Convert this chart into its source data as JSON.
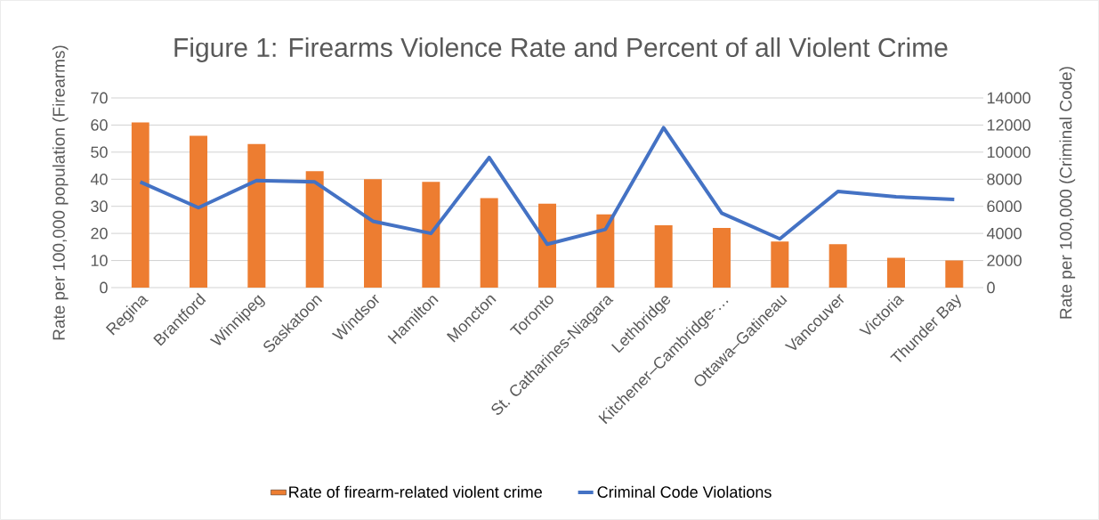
{
  "chart_data": {
    "type": "bar",
    "title": "Figure 1: Firearms Violence Rate and Percent of all Violent Crime",
    "ylabel": "Rate per 100,000 population (Firearms)",
    "y2label": "Rate per 100,000 (Criminal Code)",
    "categories": [
      "Regina",
      "Brantford",
      "Winnipeg",
      "Saskatoon",
      "Windsor",
      "Hamilton",
      "Moncton",
      "Toronto",
      "St. Catharines-Niagara",
      "Lethbridge",
      "Kitchener–Cambridge-…",
      "Ottawa–Gatineau",
      "Vancouver",
      "Victoria",
      "Thunder Bay"
    ],
    "series": [
      {
        "name": "Rate of firearm-related violent crime",
        "color": "#ed7d31",
        "values": [
          61,
          56,
          53,
          43,
          40,
          39,
          33,
          31,
          27,
          23,
          22,
          17,
          16,
          11,
          10
        ]
      },
      {
        "name": "Criminal Code Violations",
        "type": "line",
        "axis": "y2",
        "color": "#4472c4",
        "values": [
          7800,
          5900,
          7900,
          7800,
          4900,
          4000,
          9600,
          3200,
          4300,
          11800,
          5500,
          3600,
          7100,
          6700,
          6500
        ]
      }
    ],
    "ylim": [
      0,
      70
    ],
    "yticks": [
      0,
      10,
      20,
      30,
      40,
      50,
      60,
      70
    ],
    "y2lim": [
      0,
      14000
    ],
    "y2ticks": [
      0,
      2000,
      4000,
      6000,
      8000,
      10000,
      12000,
      14000
    ],
    "grid": "y",
    "legend": "bottom",
    "marker": "none",
    "line_style": "solid"
  }
}
